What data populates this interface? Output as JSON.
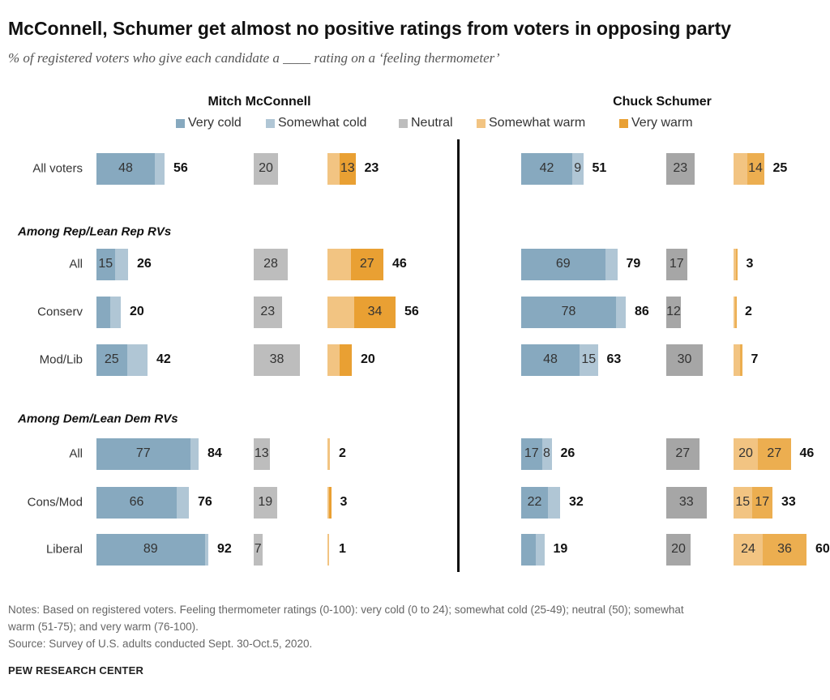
{
  "title": "McConnell, Schumer get almost no positive ratings from voters in opposing party",
  "subtitle": "% of registered voters who give each candidate a ____ rating on a ‘feeling thermometer’",
  "notes": [
    "Notes: Based on registered voters. Feeling thermometer ratings (0-100): very cold (0 to 24); somewhat cold (25-49); neutral (50); somewhat",
    "warm (51-75); and very warm (76-100).",
    "Source: Survey of U.S. adults conducted Sept. 30-Oct.5, 2020."
  ],
  "source_org": "PEW RESEARCH CENTER",
  "chart_data": {
    "type": "bar",
    "subtype": "grouped stacked horizontal bars",
    "panels": [
      "Mitch McConnell",
      "Chuck Schumer"
    ],
    "legend": [
      {
        "name": "Very cold",
        "color": "#87a9bf"
      },
      {
        "name": "Somewhat cold",
        "color": "#b0c6d5"
      },
      {
        "name": "Neutral",
        "color": "#bdbdbd"
      },
      {
        "name": "Somewhat warm",
        "color": "#f2c482"
      },
      {
        "name": "Very warm",
        "color": "#e9a033"
      }
    ],
    "sections": [
      "",
      "Among Rep/Lean Rep RVs",
      "Among Dem/Lean Dem RVs"
    ],
    "rows": [
      {
        "label": "All voters",
        "section": 0,
        "mcconnell": {
          "cold": [
            48,
            8
          ],
          "cold_labels": [
            "48",
            ""
          ],
          "cold_total": "56",
          "neutral": 20,
          "neutral_label": "20",
          "warm": [
            10,
            13
          ],
          "warm_labels": [
            "",
            "13"
          ],
          "warm_total": "23"
        },
        "schumer": {
          "cold": [
            42,
            9
          ],
          "cold_labels": [
            "42",
            "9"
          ],
          "cold_total": "51",
          "neutral": 23,
          "neutral_label": "23",
          "warm": [
            11,
            14
          ],
          "warm_labels": [
            "",
            "14"
          ],
          "warm_total": "25"
        }
      },
      {
        "label": "All",
        "section": 1,
        "mcconnell": {
          "cold": [
            15,
            11
          ],
          "cold_labels": [
            "15",
            ""
          ],
          "cold_total": "26",
          "neutral": 28,
          "neutral_label": "28",
          "warm": [
            19,
            27
          ],
          "warm_labels": [
            "",
            "27"
          ],
          "warm_total": "46"
        },
        "schumer": {
          "cold": [
            69,
            10
          ],
          "cold_labels": [
            "69",
            ""
          ],
          "cold_total": "79",
          "neutral": 17,
          "neutral_label": "17",
          "warm": [
            2,
            1
          ],
          "warm_labels": [
            "",
            ""
          ],
          "warm_total": "3"
        }
      },
      {
        "label": "Conserv",
        "section": 1,
        "mcconnell": {
          "cold": [
            11,
            9
          ],
          "cold_labels": [
            "",
            ""
          ],
          "cold_total": "20",
          "neutral": 23,
          "neutral_label": "23",
          "warm": [
            22,
            34
          ],
          "warm_labels": [
            "",
            "34"
          ],
          "warm_total": "56"
        },
        "schumer": {
          "cold": [
            78,
            8
          ],
          "cold_labels": [
            "78",
            ""
          ],
          "cold_total": "86",
          "neutral": 12,
          "neutral_label": "12",
          "warm": [
            1,
            1
          ],
          "warm_labels": [
            "",
            ""
          ],
          "warm_total": "2"
        }
      },
      {
        "label": "Mod/Lib",
        "section": 1,
        "mcconnell": {
          "cold": [
            25,
            17
          ],
          "cold_labels": [
            "25",
            ""
          ],
          "cold_total": "42",
          "neutral": 38,
          "neutral_label": "38",
          "warm": [
            10,
            10
          ],
          "warm_labels": [
            "",
            ""
          ],
          "warm_total": "20"
        },
        "schumer": {
          "cold": [
            48,
            15
          ],
          "cold_labels": [
            "48",
            "15"
          ],
          "cold_total": "63",
          "neutral": 30,
          "neutral_label": "30",
          "warm": [
            5,
            2
          ],
          "warm_labels": [
            "",
            ""
          ],
          "warm_total": "7"
        }
      },
      {
        "label": "All",
        "section": 2,
        "mcconnell": {
          "cold": [
            77,
            7
          ],
          "cold_labels": [
            "77",
            ""
          ],
          "cold_total": "84",
          "neutral": 13,
          "neutral_label": "13",
          "warm": [
            2,
            0
          ],
          "warm_labels": [
            "",
            ""
          ],
          "warm_total": "2"
        },
        "schumer": {
          "cold": [
            17,
            8
          ],
          "cold_labels": [
            "17",
            "8"
          ],
          "cold_total": "26",
          "neutral": 27,
          "neutral_label": "27",
          "warm": [
            20,
            27
          ],
          "warm_labels": [
            "20",
            "27"
          ],
          "warm_total": "46"
        }
      },
      {
        "label": "Cons/Mod",
        "section": 2,
        "mcconnell": {
          "cold": [
            66,
            10
          ],
          "cold_labels": [
            "66",
            ""
          ],
          "cold_total": "76",
          "neutral": 19,
          "neutral_label": "19",
          "warm": [
            1,
            2
          ],
          "warm_labels": [
            "",
            ""
          ],
          "warm_total": "3"
        },
        "schumer": {
          "cold": [
            22,
            10
          ],
          "cold_labels": [
            "22",
            ""
          ],
          "cold_total": "32",
          "neutral": 33,
          "neutral_label": "33",
          "warm": [
            15,
            17
          ],
          "warm_labels": [
            "15",
            "17"
          ],
          "warm_total": "33"
        }
      },
      {
        "label": "Liberal",
        "section": 2,
        "mcconnell": {
          "cold": [
            89,
            3
          ],
          "cold_labels": [
            "89",
            ""
          ],
          "cold_total": "92",
          "neutral": 7,
          "neutral_label": "7",
          "warm": [
            1,
            0
          ],
          "warm_labels": [
            "",
            ""
          ],
          "warm_total": "1"
        },
        "schumer": {
          "cold": [
            12,
            7
          ],
          "cold_labels": [
            "",
            ""
          ],
          "cold_total": "19",
          "neutral": 20,
          "neutral_label": "20",
          "warm": [
            24,
            36
          ],
          "warm_labels": [
            "24",
            "36"
          ],
          "warm_total": "60"
        }
      }
    ]
  }
}
